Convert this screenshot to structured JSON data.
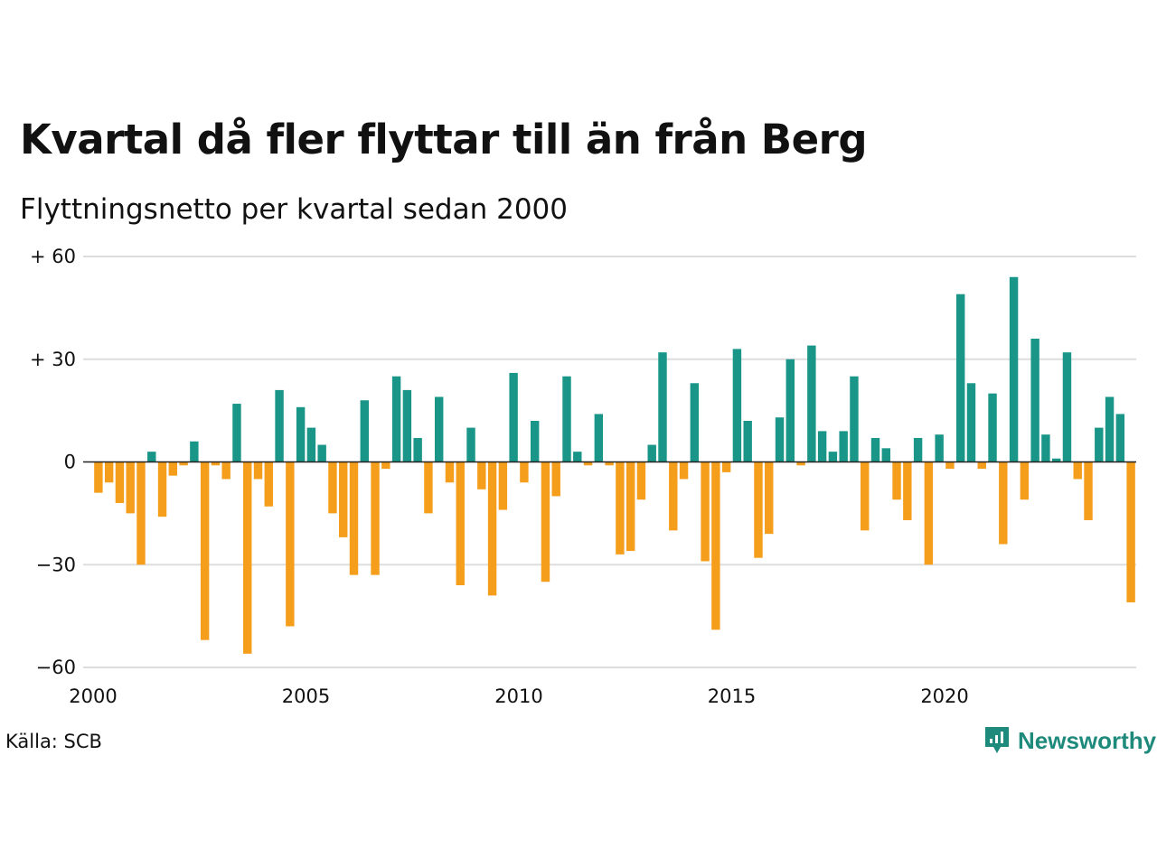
{
  "title": "Kvartal då fler flyttar till än från Berg",
  "subtitle": "Flyttningsnetto per kvartal sedan 2000",
  "source": "Källa: SCB",
  "brand": {
    "name": "Newsworthy",
    "icon": "newsworthy-logo-icon"
  },
  "colors": {
    "positive": "#1a9688",
    "negative": "#f59e1c",
    "grid": "#dddddd",
    "zero_line": "#222222"
  },
  "chart_data": {
    "type": "bar",
    "xlabel": "",
    "ylabel": "",
    "ylim": [
      -60,
      60
    ],
    "grid": true,
    "x_ticks": [
      "2000",
      "2005",
      "2010",
      "2015",
      "2020"
    ],
    "y_ticks": [
      {
        "value": 60,
        "label": "+ 60"
      },
      {
        "value": 30,
        "label": "+ 30"
      },
      {
        "value": 0,
        "label": "0"
      },
      {
        "value": -30,
        "label": "−30"
      },
      {
        "value": -60,
        "label": "−60"
      }
    ],
    "first_quarter": "2000 Q1",
    "values": [
      -9,
      -6,
      -12,
      -15,
      -30,
      3,
      -16,
      -4,
      -1,
      6,
      -52,
      -1,
      -5,
      17,
      -56,
      -5,
      -13,
      21,
      -48,
      16,
      10,
      5,
      -15,
      -22,
      -33,
      18,
      -33,
      -2,
      25,
      21,
      7,
      -15,
      19,
      -6,
      -36,
      10,
      -8,
      -39,
      -14,
      26,
      -6,
      12,
      -35,
      -10,
      25,
      3,
      -1,
      14,
      -1,
      -27,
      -26,
      -11,
      5,
      32,
      -20,
      -5,
      23,
      -29,
      -49,
      -3,
      33,
      12,
      -28,
      -21,
      13,
      30,
      -1,
      34,
      9,
      3,
      9,
      25,
      -20,
      7,
      4,
      -11,
      -17,
      7,
      -30,
      8,
      -2,
      49,
      23,
      -2,
      20,
      -24,
      54,
      -11,
      36,
      8,
      1,
      32,
      -5,
      -17,
      10,
      19,
      14,
      -41
    ]
  }
}
